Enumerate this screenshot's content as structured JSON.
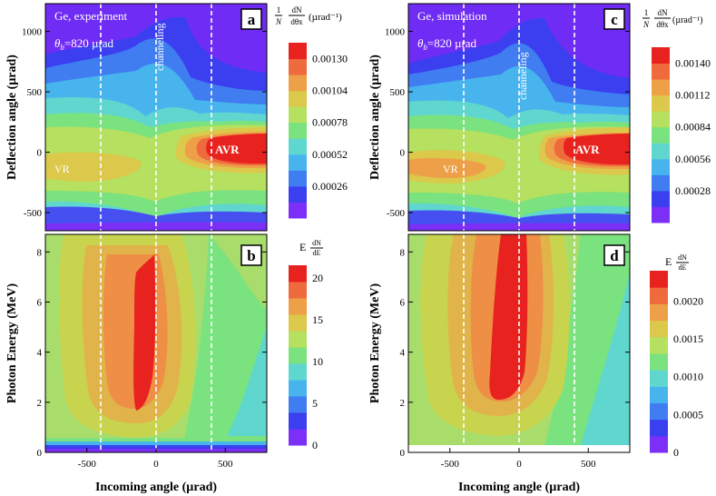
{
  "chart_data": {
    "type": "heatmap",
    "panels": [
      {
        "id": "a",
        "letter": "a",
        "title": "Ge, experiment",
        "theta_label": "θb=820 µrad",
        "theta_sym": "θ",
        "theta_sub": "b",
        "theta_val": "=820 µrad",
        "ylabel": "Deflection angle (µrad)",
        "xlim": [
          -800,
          800
        ],
        "ylim": [
          -650,
          1230
        ],
        "yticks": [
          -500,
          0,
          500,
          1000
        ],
        "vlines": [
          -400,
          0,
          400
        ],
        "vline_label": "channeling",
        "annotations": [
          {
            "text": "VR",
            "x": -520,
            "y": -170
          },
          {
            "text": "AVR",
            "x": 480,
            "y": 0
          }
        ],
        "colorbar": {
          "title_frac_top": "1",
          "title_frac_bottom": "N",
          "title_deriv_top": "dN",
          "title_deriv_bottom": "dθx",
          "title_unit": "(µrad⁻¹)",
          "max": 0.00143,
          "ticks": [
            0.0013,
            0.00104,
            0.00078,
            0.00052,
            0.00026
          ],
          "tick_labels": [
            "0.00130",
            "0.00104",
            "0.00078",
            "0.00052",
            "0.00026"
          ]
        }
      },
      {
        "id": "b",
        "letter": "b",
        "ylabel": "Photon Energy (MeV)",
        "xlabel": "Incoming angle (µrad)",
        "xlim": [
          -800,
          800
        ],
        "ylim": [
          0,
          8.7
        ],
        "yticks": [
          0,
          2,
          4,
          6,
          8
        ],
        "xticks": [
          -500,
          0,
          500
        ],
        "vlines": [
          -400,
          0,
          400
        ],
        "colorbar": {
          "title_E": "E",
          "title_deriv_top": "dN",
          "title_deriv_bottom": "dE",
          "max": 21.5,
          "ticks": [
            20,
            15,
            10,
            5,
            0
          ],
          "tick_labels": [
            "20",
            "15",
            "10",
            "5",
            "0"
          ]
        }
      },
      {
        "id": "c",
        "letter": "c",
        "title": "Ge, simulation",
        "theta_label": "θb=820 µrad",
        "theta_sym": "θ",
        "theta_sub": "b",
        "theta_val": "=820 µrad",
        "ylabel": "Deflection angle (µrad)",
        "xlim": [
          -800,
          800
        ],
        "ylim": [
          -650,
          1230
        ],
        "yticks": [
          -500,
          0,
          500,
          1000
        ],
        "vlines": [
          -400,
          0,
          400
        ],
        "vline_label": "channeling",
        "annotations": [
          {
            "text": "VR",
            "x": -520,
            "y": -170
          },
          {
            "text": "AVR",
            "x": 480,
            "y": 0
          }
        ],
        "colorbar": {
          "title_frac_top": "1",
          "title_frac_bottom": "N",
          "title_deriv_top": "dN",
          "title_deriv_bottom": "dθx",
          "title_unit": "(µrad⁻¹)",
          "max": 0.00154,
          "ticks": [
            0.0014,
            0.00112,
            0.00084,
            0.00056,
            0.00028
          ],
          "tick_labels": [
            "0.00140",
            "0.00112",
            "0.00084",
            "0.00056",
            "0.00028"
          ]
        }
      },
      {
        "id": "d",
        "letter": "d",
        "ylabel": "Photon Energy (MeV)",
        "xlabel": "Incoming angle (µrad)",
        "xlim": [
          -800,
          800
        ],
        "ylim": [
          0,
          8.7
        ],
        "yticks": [
          0,
          2,
          4,
          6,
          8
        ],
        "xticks": [
          -500,
          0,
          500
        ],
        "vlines": [
          -400,
          0,
          400
        ],
        "colorbar": {
          "title_E": "E",
          "title_deriv_top": "dN",
          "title_deriv_bottom": "dE",
          "max": 0.0024,
          "ticks": [
            0.002,
            0.0015,
            0.001,
            0.0005,
            0
          ],
          "tick_labels": [
            "0.0020",
            "0.0015",
            "0.0010",
            "0.0005",
            "0"
          ]
        }
      }
    ]
  },
  "colors": {
    "scale": [
      "#7b2ff7",
      "#3a3ff0",
      "#3f7df0",
      "#48b4ee",
      "#5fd7cf",
      "#7ae27e",
      "#b5e060",
      "#dcc84a",
      "#eea048",
      "#ef6a3c",
      "#e8231f"
    ],
    "vline": "#ffffff",
    "label_text": "#ffffff"
  }
}
